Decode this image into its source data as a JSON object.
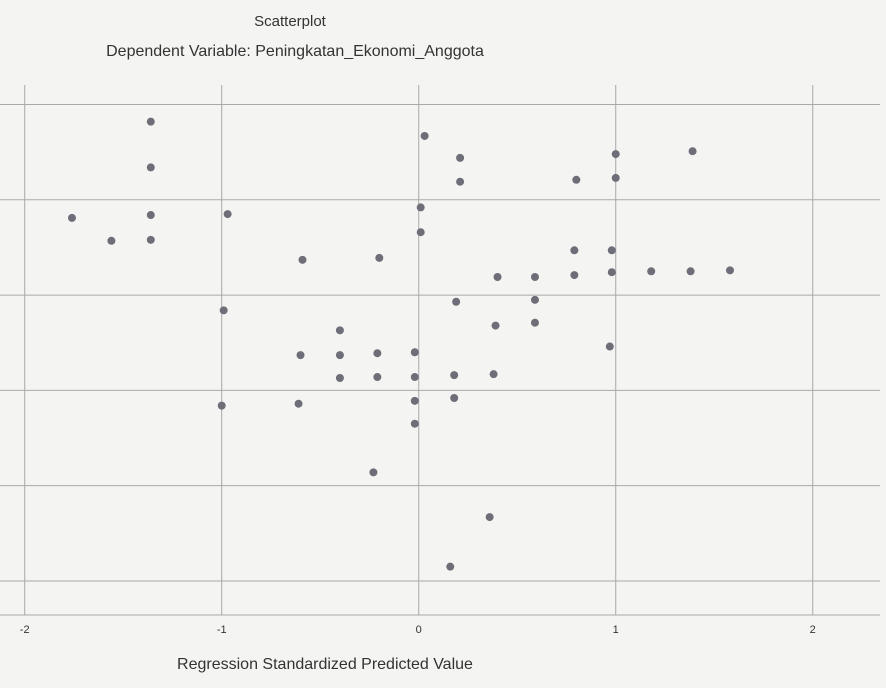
{
  "chart_data": {
    "type": "scatter",
    "title": "Scatterplot",
    "subtitle": "Dependent Variable: Peningkatan_Ekonomi_Anggota",
    "x_label": "Regression Standardized Predicted Value",
    "xlim": [
      -2.1,
      2.25
    ],
    "ylim": [
      -2.2,
      3.1
    ],
    "xticks": [
      -2,
      -1,
      0,
      1,
      2
    ],
    "yticks": [
      -2,
      -1,
      0,
      1,
      2,
      3
    ],
    "grid": true,
    "color": "#6e6e78",
    "x": [
      -1.36,
      -1.36,
      -1.36,
      -1.36,
      -1.76,
      -1.56,
      -0.97,
      -0.99,
      -1.0,
      -0.59,
      -0.6,
      -0.61,
      -0.4,
      -0.4,
      -0.4,
      -0.21,
      -0.21,
      -0.2,
      -0.23,
      0.03,
      0.01,
      0.01,
      -0.02,
      -0.02,
      -0.02,
      -0.02,
      0.21,
      0.21,
      0.19,
      0.18,
      0.18,
      0.16,
      0.36,
      0.4,
      0.39,
      0.38,
      0.59,
      0.59,
      0.59,
      0.8,
      0.79,
      0.79,
      1.0,
      1.0,
      0.98,
      0.98,
      0.97,
      1.18,
      1.39,
      1.38,
      1.58
    ],
    "values": [
      2.82,
      2.34,
      1.84,
      1.58,
      1.81,
      1.57,
      1.85,
      0.84,
      -0.16,
      1.37,
      0.37,
      -0.14,
      0.63,
      0.37,
      0.13,
      0.39,
      0.14,
      1.39,
      -0.86,
      2.67,
      1.92,
      1.66,
      0.4,
      0.14,
      -0.11,
      -0.35,
      2.44,
      2.19,
      0.93,
      0.16,
      -0.08,
      -1.85,
      -1.33,
      1.19,
      0.68,
      0.17,
      1.19,
      0.95,
      0.71,
      2.21,
      1.47,
      1.21,
      2.48,
      2.23,
      1.47,
      1.24,
      0.46,
      1.25,
      2.51,
      1.25,
      1.26
    ]
  }
}
